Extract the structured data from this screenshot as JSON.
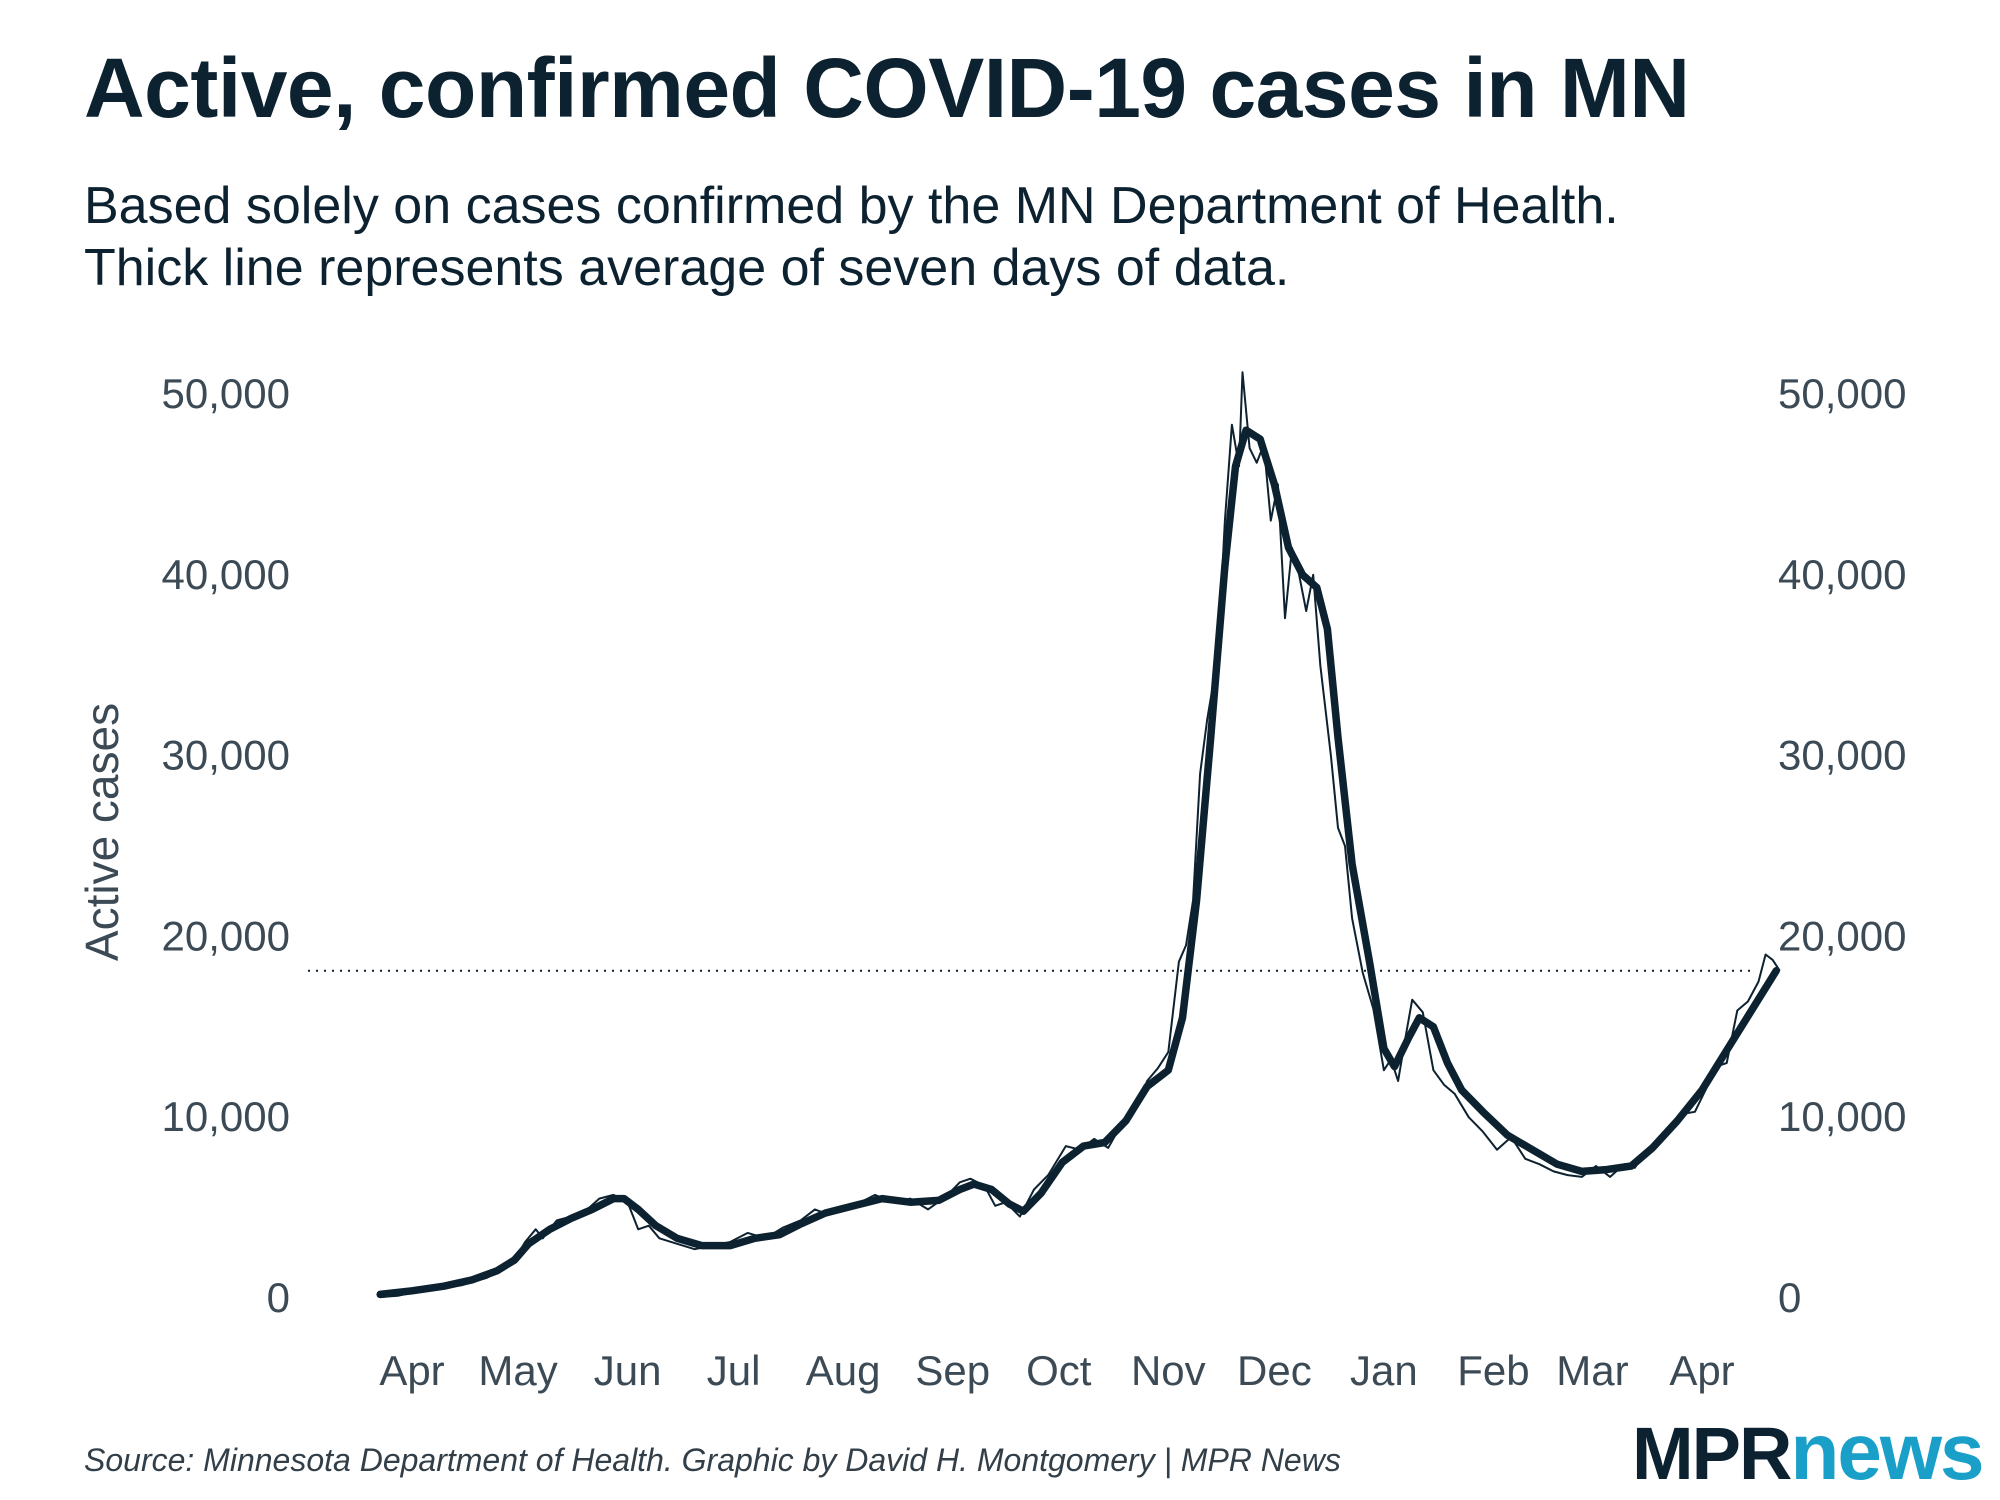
{
  "chart_data": {
    "type": "line",
    "title": "Active, confirmed COVID-19 cases in MN",
    "subtitle_lines": [
      "Based solely on cases confirmed by the MN Department of Health.",
      "Thick line represents average of seven days of data."
    ],
    "ylabel": "Active cases",
    "ylim": [
      0,
      50000
    ],
    "yticks": [
      0,
      10000,
      20000,
      30000,
      40000,
      50000
    ],
    "ytick_labels": [
      "0",
      "10,000",
      "20,000",
      "30,000",
      "40,000",
      "50,000"
    ],
    "xticks": [
      {
        "label": "Apr",
        "date": "2020-04-01"
      },
      {
        "label": "May",
        "date": "2020-05-01"
      },
      {
        "label": "Jun",
        "date": "2020-06-01"
      },
      {
        "label": "Jul",
        "date": "2020-07-01"
      },
      {
        "label": "Aug",
        "date": "2020-08-01"
      },
      {
        "label": "Sep",
        "date": "2020-09-01"
      },
      {
        "label": "Oct",
        "date": "2020-10-01"
      },
      {
        "label": "Nov",
        "date": "2020-11-01"
      },
      {
        "label": "Dec",
        "date": "2020-12-01"
      },
      {
        "label": "Jan",
        "date": "2021-01-01"
      },
      {
        "label": "Feb",
        "date": "2021-02-01"
      },
      {
        "label": "Mar",
        "date": "2021-03-01"
      },
      {
        "label": "Apr",
        "date": "2021-04-01"
      }
    ],
    "reference_line": {
      "value": 18100,
      "style": "dotted"
    },
    "grid": false,
    "legend": "none",
    "series": [
      {
        "style": "thin",
        "points": [
          [
            "2020-03-23",
            50
          ],
          [
            "2020-03-28",
            120
          ],
          [
            "2020-04-01",
            300
          ],
          [
            "2020-04-08",
            500
          ],
          [
            "2020-04-15",
            700
          ],
          [
            "2020-04-22",
            1100
          ],
          [
            "2020-04-26",
            1500
          ],
          [
            "2020-04-30",
            2100
          ],
          [
            "2020-05-03",
            3100
          ],
          [
            "2020-05-06",
            3800
          ],
          [
            "2020-05-08",
            3300
          ],
          [
            "2020-05-12",
            4300
          ],
          [
            "2020-05-16",
            4500
          ],
          [
            "2020-05-20",
            4800
          ],
          [
            "2020-05-24",
            5500
          ],
          [
            "2020-05-28",
            5700
          ],
          [
            "2020-06-01",
            5300
          ],
          [
            "2020-06-04",
            3800
          ],
          [
            "2020-06-07",
            4000
          ],
          [
            "2020-06-10",
            3300
          ],
          [
            "2020-06-15",
            3000
          ],
          [
            "2020-06-20",
            2700
          ],
          [
            "2020-06-25",
            2900
          ],
          [
            "2020-06-30",
            3100
          ],
          [
            "2020-07-05",
            3600
          ],
          [
            "2020-07-10",
            3300
          ],
          [
            "2020-07-15",
            3900
          ],
          [
            "2020-07-20",
            4300
          ],
          [
            "2020-07-24",
            4900
          ],
          [
            "2020-07-28",
            4600
          ],
          [
            "2020-08-01",
            5100
          ],
          [
            "2020-08-06",
            5300
          ],
          [
            "2020-08-10",
            5700
          ],
          [
            "2020-08-15",
            5300
          ],
          [
            "2020-08-20",
            5500
          ],
          [
            "2020-08-25",
            4900
          ],
          [
            "2020-08-30",
            5600
          ],
          [
            "2020-09-03",
            6400
          ],
          [
            "2020-09-06",
            6600
          ],
          [
            "2020-09-10",
            6200
          ],
          [
            "2020-09-13",
            5100
          ],
          [
            "2020-09-16",
            5300
          ],
          [
            "2020-09-20",
            4500
          ],
          [
            "2020-09-24",
            6000
          ],
          [
            "2020-09-28",
            6800
          ],
          [
            "2020-10-03",
            8400
          ],
          [
            "2020-10-07",
            8200
          ],
          [
            "2020-10-11",
            8800
          ],
          [
            "2020-10-15",
            8300
          ],
          [
            "2020-10-19",
            9700
          ],
          [
            "2020-10-23",
            10500
          ],
          [
            "2020-10-26",
            12000
          ],
          [
            "2020-10-29",
            12700
          ],
          [
            "2020-11-01",
            13600
          ],
          [
            "2020-11-04",
            18600
          ],
          [
            "2020-11-06",
            19500
          ],
          [
            "2020-11-08",
            22000
          ],
          [
            "2020-11-10",
            29000
          ],
          [
            "2020-11-12",
            32000
          ],
          [
            "2020-11-15",
            35500
          ],
          [
            "2020-11-17",
            43000
          ],
          [
            "2020-11-19",
            48300
          ],
          [
            "2020-11-21",
            46000
          ],
          [
            "2020-11-22",
            51200
          ],
          [
            "2020-11-24",
            47000
          ],
          [
            "2020-11-26",
            46200
          ],
          [
            "2020-11-28",
            47200
          ],
          [
            "2020-11-30",
            43000
          ],
          [
            "2020-12-02",
            45000
          ],
          [
            "2020-12-04",
            37600
          ],
          [
            "2020-12-06",
            41500
          ],
          [
            "2020-12-08",
            40000
          ],
          [
            "2020-12-10",
            38000
          ],
          [
            "2020-12-12",
            40000
          ],
          [
            "2020-12-14",
            35000
          ],
          [
            "2020-12-17",
            30000
          ],
          [
            "2020-12-19",
            26000
          ],
          [
            "2020-12-21",
            25000
          ],
          [
            "2020-12-23",
            21000
          ],
          [
            "2020-12-26",
            18000
          ],
          [
            "2020-12-29",
            16000
          ],
          [
            "2021-01-01",
            12600
          ],
          [
            "2021-01-03",
            13200
          ],
          [
            "2021-01-05",
            12000
          ],
          [
            "2021-01-07",
            14300
          ],
          [
            "2021-01-09",
            16500
          ],
          [
            "2021-01-12",
            15800
          ],
          [
            "2021-01-15",
            12600
          ],
          [
            "2021-01-18",
            11800
          ],
          [
            "2021-01-21",
            11300
          ],
          [
            "2021-01-25",
            10000
          ],
          [
            "2021-01-29",
            9200
          ],
          [
            "2021-02-02",
            8200
          ],
          [
            "2021-02-06",
            8900
          ],
          [
            "2021-02-10",
            7700
          ],
          [
            "2021-02-14",
            7400
          ],
          [
            "2021-02-18",
            7000
          ],
          [
            "2021-02-22",
            6800
          ],
          [
            "2021-02-26",
            6700
          ],
          [
            "2021-03-02",
            7300
          ],
          [
            "2021-03-06",
            6700
          ],
          [
            "2021-03-10",
            7400
          ],
          [
            "2021-03-13",
            7200
          ],
          [
            "2021-03-16",
            8100
          ],
          [
            "2021-03-20",
            8600
          ],
          [
            "2021-03-24",
            9400
          ],
          [
            "2021-03-27",
            10200
          ],
          [
            "2021-03-30",
            10300
          ],
          [
            "2021-04-02",
            11500
          ],
          [
            "2021-04-05",
            12800
          ],
          [
            "2021-04-08",
            13000
          ],
          [
            "2021-04-11",
            15900
          ],
          [
            "2021-04-14",
            16400
          ],
          [
            "2021-04-17",
            17500
          ],
          [
            "2021-04-19",
            19000
          ],
          [
            "2021-04-21",
            18700
          ],
          [
            "2021-04-23",
            18100
          ]
        ]
      },
      {
        "style": "thick",
        "points": [
          [
            "2020-03-23",
            200
          ],
          [
            "2020-04-01",
            400
          ],
          [
            "2020-04-10",
            650
          ],
          [
            "2020-04-18",
            1000
          ],
          [
            "2020-04-25",
            1500
          ],
          [
            "2020-04-30",
            2100
          ],
          [
            "2020-05-04",
            3000
          ],
          [
            "2020-05-10",
            3800
          ],
          [
            "2020-05-16",
            4400
          ],
          [
            "2020-05-22",
            4900
          ],
          [
            "2020-05-28",
            5500
          ],
          [
            "2020-05-31",
            5500
          ],
          [
            "2020-06-04",
            4900
          ],
          [
            "2020-06-09",
            4000
          ],
          [
            "2020-06-15",
            3300
          ],
          [
            "2020-06-22",
            2900
          ],
          [
            "2020-06-30",
            2900
          ],
          [
            "2020-07-07",
            3300
          ],
          [
            "2020-07-14",
            3500
          ],
          [
            "2020-07-20",
            4100
          ],
          [
            "2020-07-27",
            4700
          ],
          [
            "2020-08-04",
            5100
          ],
          [
            "2020-08-12",
            5500
          ],
          [
            "2020-08-20",
            5300
          ],
          [
            "2020-08-28",
            5400
          ],
          [
            "2020-09-03",
            6000
          ],
          [
            "2020-09-07",
            6300
          ],
          [
            "2020-09-12",
            6000
          ],
          [
            "2020-09-17",
            5200
          ],
          [
            "2020-09-21",
            4800
          ],
          [
            "2020-09-26",
            5800
          ],
          [
            "2020-10-02",
            7500
          ],
          [
            "2020-10-08",
            8400
          ],
          [
            "2020-10-14",
            8600
          ],
          [
            "2020-10-20",
            9800
          ],
          [
            "2020-10-26",
            11700
          ],
          [
            "2020-11-01",
            12600
          ],
          [
            "2020-11-05",
            15500
          ],
          [
            "2020-11-09",
            22000
          ],
          [
            "2020-11-13",
            31000
          ],
          [
            "2020-11-17",
            40500
          ],
          [
            "2020-11-20",
            46000
          ],
          [
            "2020-11-23",
            48000
          ],
          [
            "2020-11-27",
            47500
          ],
          [
            "2020-12-01",
            45000
          ],
          [
            "2020-12-05",
            41500
          ],
          [
            "2020-12-09",
            40000
          ],
          [
            "2020-12-13",
            39300
          ],
          [
            "2020-12-16",
            37000
          ],
          [
            "2020-12-19",
            31000
          ],
          [
            "2020-12-23",
            24000
          ],
          [
            "2020-12-28",
            18500
          ],
          [
            "2021-01-01",
            13800
          ],
          [
            "2021-01-04",
            12800
          ],
          [
            "2021-01-08",
            14400
          ],
          [
            "2021-01-11",
            15500
          ],
          [
            "2021-01-15",
            15000
          ],
          [
            "2021-01-19",
            13000
          ],
          [
            "2021-01-23",
            11500
          ],
          [
            "2021-01-29",
            10300
          ],
          [
            "2021-02-05",
            9000
          ],
          [
            "2021-02-12",
            8200
          ],
          [
            "2021-02-19",
            7400
          ],
          [
            "2021-02-26",
            7000
          ],
          [
            "2021-03-05",
            7100
          ],
          [
            "2021-03-12",
            7300
          ],
          [
            "2021-03-18",
            8300
          ],
          [
            "2021-03-25",
            9800
          ],
          [
            "2021-04-01",
            11500
          ],
          [
            "2021-04-08",
            13700
          ],
          [
            "2021-04-15",
            15900
          ],
          [
            "2021-04-22",
            18100
          ]
        ]
      }
    ]
  },
  "source": "Source: Minnesota Department of Health. Graphic by David H. Montgomery | MPR News",
  "logo": {
    "part1": "MPR",
    "part2": "news"
  },
  "colors": {
    "text": "#0d2230",
    "line": "#0d2230",
    "axis_text": "#3b4a55",
    "logo_accent": "#1aa0c8"
  }
}
